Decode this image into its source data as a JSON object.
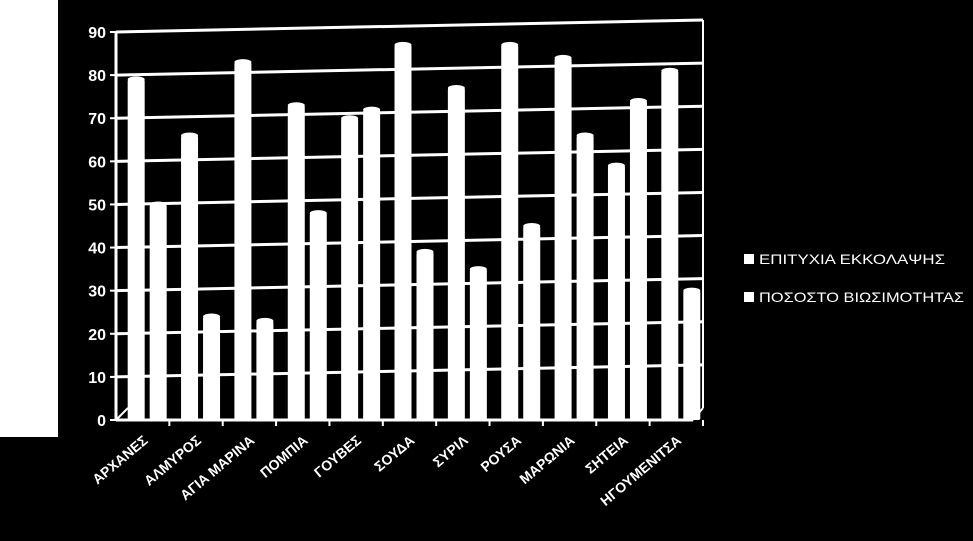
{
  "chart_data": {
    "type": "bar",
    "categories": [
      "ΑΡΧΑΝΕΣ",
      "ΑΛΜΥΡΟΣ",
      "ΑΓΙΑ ΜΑΡΙΝΑ",
      "ΠΟΜΠΙΑ",
      "ΓΟΥΒΕΣ",
      "ΣΟΥΔΑ",
      "ΣΥΡΙΛ",
      "ΡΟΥΣΑ",
      "ΜΑΡΩΝΙΑ",
      "ΣΗΤΕΙΑ",
      "ΗΓΟΥΜΕΝΙΤΣΑ"
    ],
    "series": [
      {
        "name": "ΕΠΙΤΥΧΙΑ ΕΚΚΟΛΑΨΗΣ",
        "values": [
          79,
          66,
          83,
          73,
          70,
          87,
          77,
          87,
          84,
          59,
          81
        ],
        "color": "#ffffff"
      },
      {
        "name": "ΠΟΣΟΣΤΟ ΒΙΩΣΙΜΟΤΗΤΑΣ",
        "values": [
          50,
          24,
          23,
          48,
          72,
          39,
          35,
          45,
          66,
          74,
          30
        ],
        "color": "#ffffff"
      }
    ],
    "ylim": [
      0,
      90
    ],
    "yticks": [
      0,
      10,
      20,
      30,
      40,
      50,
      60,
      70,
      80,
      90
    ],
    "title": "",
    "xlabel": "",
    "ylabel": "",
    "grid": true,
    "legend_position": "right",
    "colors": {
      "background": "#000000",
      "grid": "#ffffff",
      "bars": "#ffffff"
    }
  }
}
